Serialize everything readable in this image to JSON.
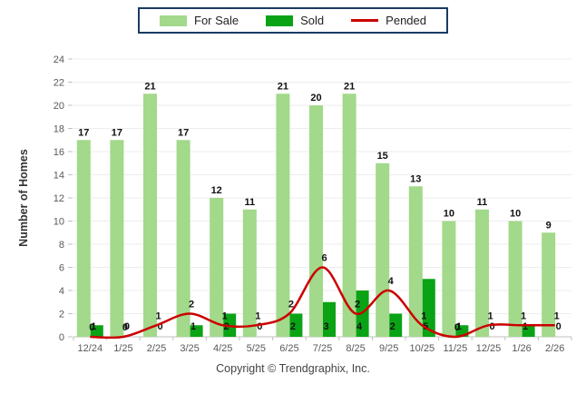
{
  "legend": {
    "items": [
      {
        "label": "For Sale",
        "type": "bar",
        "color": "#a2d98a"
      },
      {
        "label": "Sold",
        "type": "bar",
        "color": "#0aa315"
      },
      {
        "label": "Pended",
        "type": "line",
        "color": "#cc0000"
      }
    ],
    "border_color": "#1b3a64"
  },
  "footer": {
    "copyright": "Copyright © Trendgraphix, Inc."
  },
  "chart_data": {
    "type": "bar",
    "title": "",
    "xlabel": "",
    "ylabel": "Number of Homes",
    "categories": [
      "12/24",
      "1/25",
      "2/25",
      "3/25",
      "4/25",
      "5/25",
      "6/25",
      "7/25",
      "8/25",
      "9/25",
      "10/25",
      "11/25",
      "12/25",
      "1/26",
      "2/26"
    ],
    "series": [
      {
        "name": "For Sale",
        "type": "bar",
        "color": "#a2d98a",
        "values": [
          17,
          17,
          21,
          17,
          12,
          11,
          21,
          20,
          21,
          15,
          13,
          10,
          11,
          10,
          9
        ]
      },
      {
        "name": "Sold",
        "type": "bar",
        "color": "#0aa315",
        "values": [
          1,
          0,
          0,
          1,
          2,
          0,
          2,
          3,
          4,
          2,
          5,
          1,
          0,
          1,
          0
        ]
      },
      {
        "name": "Pended",
        "type": "line",
        "color": "#cc0000",
        "values": [
          0,
          0,
          1,
          2,
          1,
          1,
          2,
          6,
          2,
          4,
          1,
          0,
          1,
          1,
          1
        ]
      }
    ],
    "ylim": [
      0,
      24
    ],
    "ytick_step": 2,
    "yticks": [
      0,
      2,
      4,
      6,
      8,
      10,
      12,
      14,
      16,
      18,
      20,
      22,
      24
    ],
    "grid": true,
    "legend_position": "top-center",
    "label_color": "#111111",
    "axis_text_color": "#595959",
    "grid_color": "#ededed",
    "axis_line_color": "#c0c0c0"
  }
}
